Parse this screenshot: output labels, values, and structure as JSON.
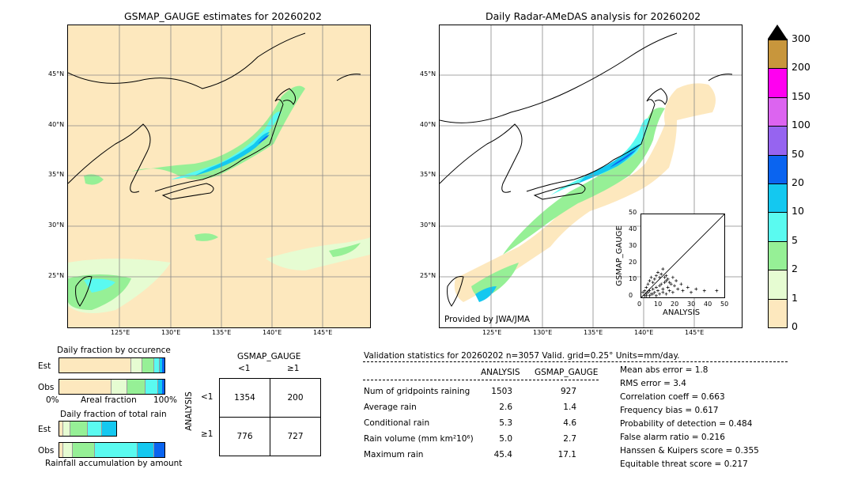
{
  "left_map": {
    "title": "GSMAP_GAUGE estimates for 20260202",
    "lat_labels": [
      "45°N",
      "40°N",
      "35°N",
      "30°N",
      "25°N"
    ],
    "lon_labels": [
      "125°E",
      "130°E",
      "135°E",
      "140°E",
      "145°E"
    ]
  },
  "right_map": {
    "title": "Daily Radar-AMeDAS analysis for 20260202",
    "lat_labels": [
      "45°N",
      "40°N",
      "35°N",
      "30°N",
      "25°N"
    ],
    "lon_labels": [
      "125°E",
      "130°E",
      "135°E",
      "140°E",
      "145°E"
    ],
    "credit": "Provided by JWA/JMA"
  },
  "colorbar": {
    "levels": [
      "0",
      "1",
      "2",
      "5",
      "10",
      "20",
      "50",
      "100",
      "150",
      "200",
      "300"
    ],
    "colors": [
      "#fde8be",
      "#e6fcd2",
      "#96f096",
      "#5afaf0",
      "#14c8f0",
      "#0a64f0",
      "#9664f0",
      "#dc64f0",
      "#ff00f0",
      "#c8963c"
    ]
  },
  "scatter": {
    "xlabel": "ANALYSIS",
    "ylabel": "GSMAP_GAUGE",
    "ticks": [
      "0",
      "10",
      "20",
      "30",
      "40",
      "50"
    ]
  },
  "occurrence": {
    "title": "Daily fraction by occurence",
    "rows": [
      "Est",
      "Obs"
    ],
    "axis_left": "0%",
    "axis_mid": "Areal fraction",
    "axis_right": "100%"
  },
  "total_rain": {
    "title": "Daily fraction of total rain",
    "rows": [
      "Est",
      "Obs"
    ],
    "footer": "Rainfall accumulation by amount"
  },
  "contingency": {
    "header": "GSMAP_GAUGE",
    "col_lt": "<1",
    "col_ge": "≥1",
    "side": "ANALYSIS",
    "row_lt": "<1",
    "row_ge": "≥1",
    "cells": [
      "1354",
      "200",
      "776",
      "727"
    ]
  },
  "validation": {
    "header": "Validation statistics for 20260202  n=3057 Valid. grid=0.25° Units=mm/day.",
    "col_analysis": "ANALYSIS",
    "col_gsmap": "GSMAP_GAUGE",
    "rows": [
      {
        "label": "Num of gridpoints raining",
        "analysis": "1503",
        "gsmap": "927"
      },
      {
        "label": "Average rain",
        "analysis": "2.6",
        "gsmap": "1.4"
      },
      {
        "label": "Conditional rain",
        "analysis": "5.3",
        "gsmap": "4.6"
      },
      {
        "label": "Rain volume (mm km²10⁶)",
        "analysis": "5.0",
        "gsmap": "2.7"
      },
      {
        "label": "Maximum rain",
        "analysis": "45.4",
        "gsmap": "17.1"
      }
    ],
    "scores": [
      "Mean abs error =    1.8",
      "RMS error =    3.4",
      "Correlation coeff =  0.663",
      "Frequency bias =  0.617",
      "Probability of detection =  0.484",
      "False alarm ratio =  0.216",
      "Hanssen & Kuipers score =  0.355",
      "Equitable threat score =  0.217"
    ]
  },
  "chart_data": [
    {
      "type": "scatter",
      "xlabel": "ANALYSIS",
      "ylabel": "GSMAP_GAUGE",
      "xlim": [
        0,
        50
      ],
      "ylim": [
        0,
        50
      ],
      "points": [
        [
          2,
          1
        ],
        [
          3,
          2
        ],
        [
          4,
          3
        ],
        [
          5,
          4
        ],
        [
          6,
          2
        ],
        [
          7,
          5
        ],
        [
          8,
          3
        ],
        [
          9,
          6
        ],
        [
          10,
          4
        ],
        [
          11,
          7
        ],
        [
          12,
          8
        ],
        [
          13,
          5
        ],
        [
          14,
          9
        ],
        [
          15,
          10
        ],
        [
          16,
          6
        ],
        [
          18,
          8
        ],
        [
          20,
          7
        ],
        [
          22,
          5
        ],
        [
          25,
          4
        ],
        [
          28,
          6
        ],
        [
          30,
          3
        ],
        [
          33,
          5
        ],
        [
          38,
          4
        ],
        [
          45.4,
          4
        ],
        [
          1,
          3
        ],
        [
          2,
          4
        ],
        [
          3,
          6
        ],
        [
          4,
          8
        ],
        [
          5,
          10
        ],
        [
          6,
          12
        ],
        [
          7,
          9
        ],
        [
          8,
          11
        ],
        [
          9,
          13
        ],
        [
          10,
          15
        ],
        [
          11,
          12
        ],
        [
          12,
          14
        ],
        [
          13,
          17.1
        ],
        [
          14,
          12
        ],
        [
          15,
          13
        ],
        [
          16,
          11
        ],
        [
          17,
          9
        ],
        [
          19,
          12
        ],
        [
          21,
          10
        ],
        [
          24,
          8
        ],
        [
          3,
          1
        ],
        [
          5,
          1
        ],
        [
          7,
          2
        ],
        [
          9,
          1
        ],
        [
          11,
          2
        ],
        [
          13,
          3
        ],
        [
          15,
          2
        ],
        [
          17,
          4
        ],
        [
          19,
          3
        ]
      ]
    },
    {
      "type": "bar",
      "title": "Daily fraction by occurence",
      "rows": [
        "Est",
        "Obs"
      ],
      "note": "stacked horizontal fractions by rain class"
    }
  ]
}
